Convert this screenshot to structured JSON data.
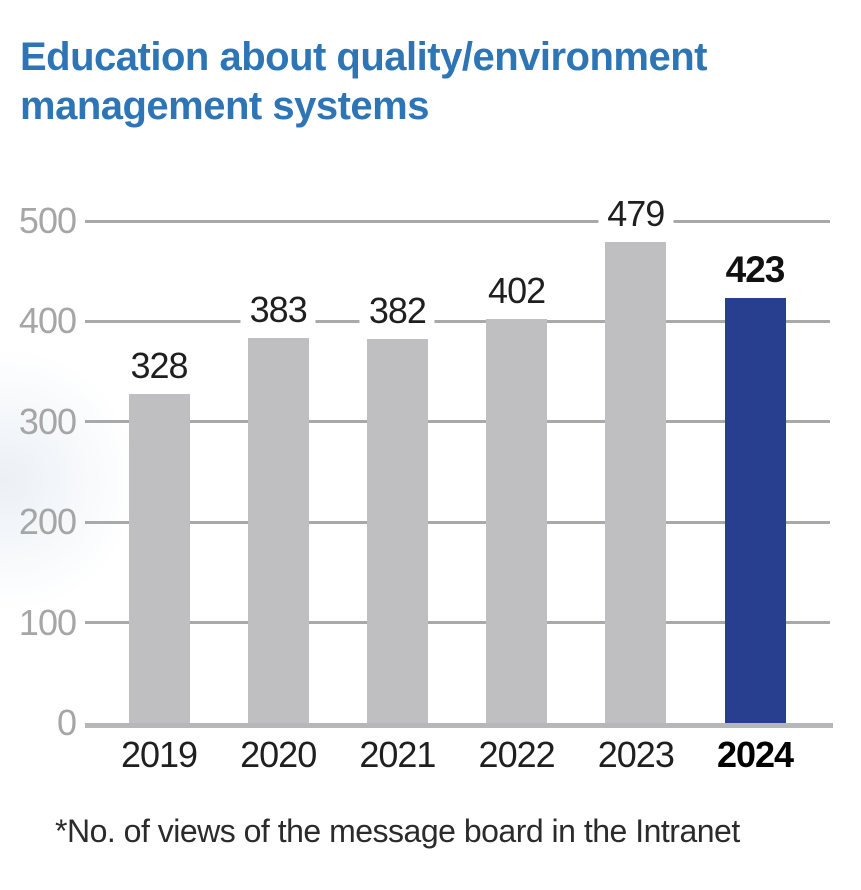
{
  "title": {
    "text": "Education about quality/environment management systems",
    "color": "#2E75B6"
  },
  "footnote": "*No. of views of the message board in the Intranet",
  "chart_data": {
    "type": "bar",
    "title": "Education about quality/environment management systems",
    "categories": [
      "2019",
      "2020",
      "2021",
      "2022",
      "2023",
      "2024"
    ],
    "values": [
      328,
      383,
      382,
      402,
      479,
      423
    ],
    "highlight_category": "2024",
    "highlight_index": 5,
    "xlabel": "",
    "ylabel": "",
    "ylim": [
      0,
      500
    ],
    "yticks": [
      0,
      100,
      200,
      300,
      400,
      500
    ],
    "grid": true,
    "legend": false,
    "annotation": "*No. of views of the message board in the Intranet",
    "colors": {
      "bar": "#BFBFC1",
      "highlight_bar": "#283E8F",
      "gridline": "#A9A9A9",
      "baseline": "#B5B7B9",
      "axis_tick_text": "#A6A6A6",
      "value_text": "#1f1f1f",
      "title_text": "#2E75B6"
    }
  }
}
